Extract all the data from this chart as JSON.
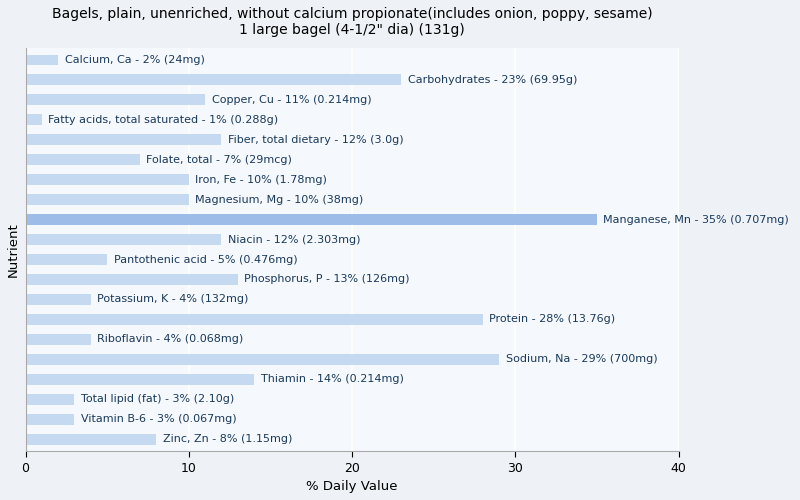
{
  "title": "Bagels, plain, unenriched, without calcium propionate(includes onion, poppy, sesame)\n1 large bagel (4-1/2\" dia) (131g)",
  "xlabel": "% Daily Value",
  "ylabel": "Nutrient",
  "xlim": [
    0,
    40
  ],
  "xticks": [
    0,
    10,
    20,
    30,
    40
  ],
  "background_color": "#eef2f7",
  "plot_bg_color": "#f5f8fc",
  "bar_color": "#c5d9f1",
  "bar_color_highlight": "#9dbde8",
  "label_color": "#1a3a5c",
  "nutrients": [
    {
      "name": "Calcium, Ca - 2% (24mg)",
      "value": 2,
      "highlight": false
    },
    {
      "name": "Carbohydrates - 23% (69.95g)",
      "value": 23,
      "highlight": false
    },
    {
      "name": "Copper, Cu - 11% (0.214mg)",
      "value": 11,
      "highlight": false
    },
    {
      "name": "Fatty acids, total saturated - 1% (0.288g)",
      "value": 1,
      "highlight": false
    },
    {
      "name": "Fiber, total dietary - 12% (3.0g)",
      "value": 12,
      "highlight": false
    },
    {
      "name": "Folate, total - 7% (29mcg)",
      "value": 7,
      "highlight": false
    },
    {
      "name": "Iron, Fe - 10% (1.78mg)",
      "value": 10,
      "highlight": false
    },
    {
      "name": "Magnesium, Mg - 10% (38mg)",
      "value": 10,
      "highlight": false
    },
    {
      "name": "Manganese, Mn - 35% (0.707mg)",
      "value": 35,
      "highlight": true
    },
    {
      "name": "Niacin - 12% (2.303mg)",
      "value": 12,
      "highlight": false
    },
    {
      "name": "Pantothenic acid - 5% (0.476mg)",
      "value": 5,
      "highlight": false
    },
    {
      "name": "Phosphorus, P - 13% (126mg)",
      "value": 13,
      "highlight": false
    },
    {
      "name": "Potassium, K - 4% (132mg)",
      "value": 4,
      "highlight": false
    },
    {
      "name": "Protein - 28% (13.76g)",
      "value": 28,
      "highlight": false
    },
    {
      "name": "Riboflavin - 4% (0.068mg)",
      "value": 4,
      "highlight": false
    },
    {
      "name": "Sodium, Na - 29% (700mg)",
      "value": 29,
      "highlight": false
    },
    {
      "name": "Thiamin - 14% (0.214mg)",
      "value": 14,
      "highlight": false
    },
    {
      "name": "Total lipid (fat) - 3% (2.10g)",
      "value": 3,
      "highlight": false
    },
    {
      "name": "Vitamin B-6 - 3% (0.067mg)",
      "value": 3,
      "highlight": false
    },
    {
      "name": "Zinc, Zn - 8% (1.15mg)",
      "value": 8,
      "highlight": false
    }
  ],
  "title_fontsize": 10,
  "axis_label_fontsize": 9.5,
  "bar_label_fontsize": 8,
  "tick_fontsize": 9,
  "bar_height": 0.55
}
